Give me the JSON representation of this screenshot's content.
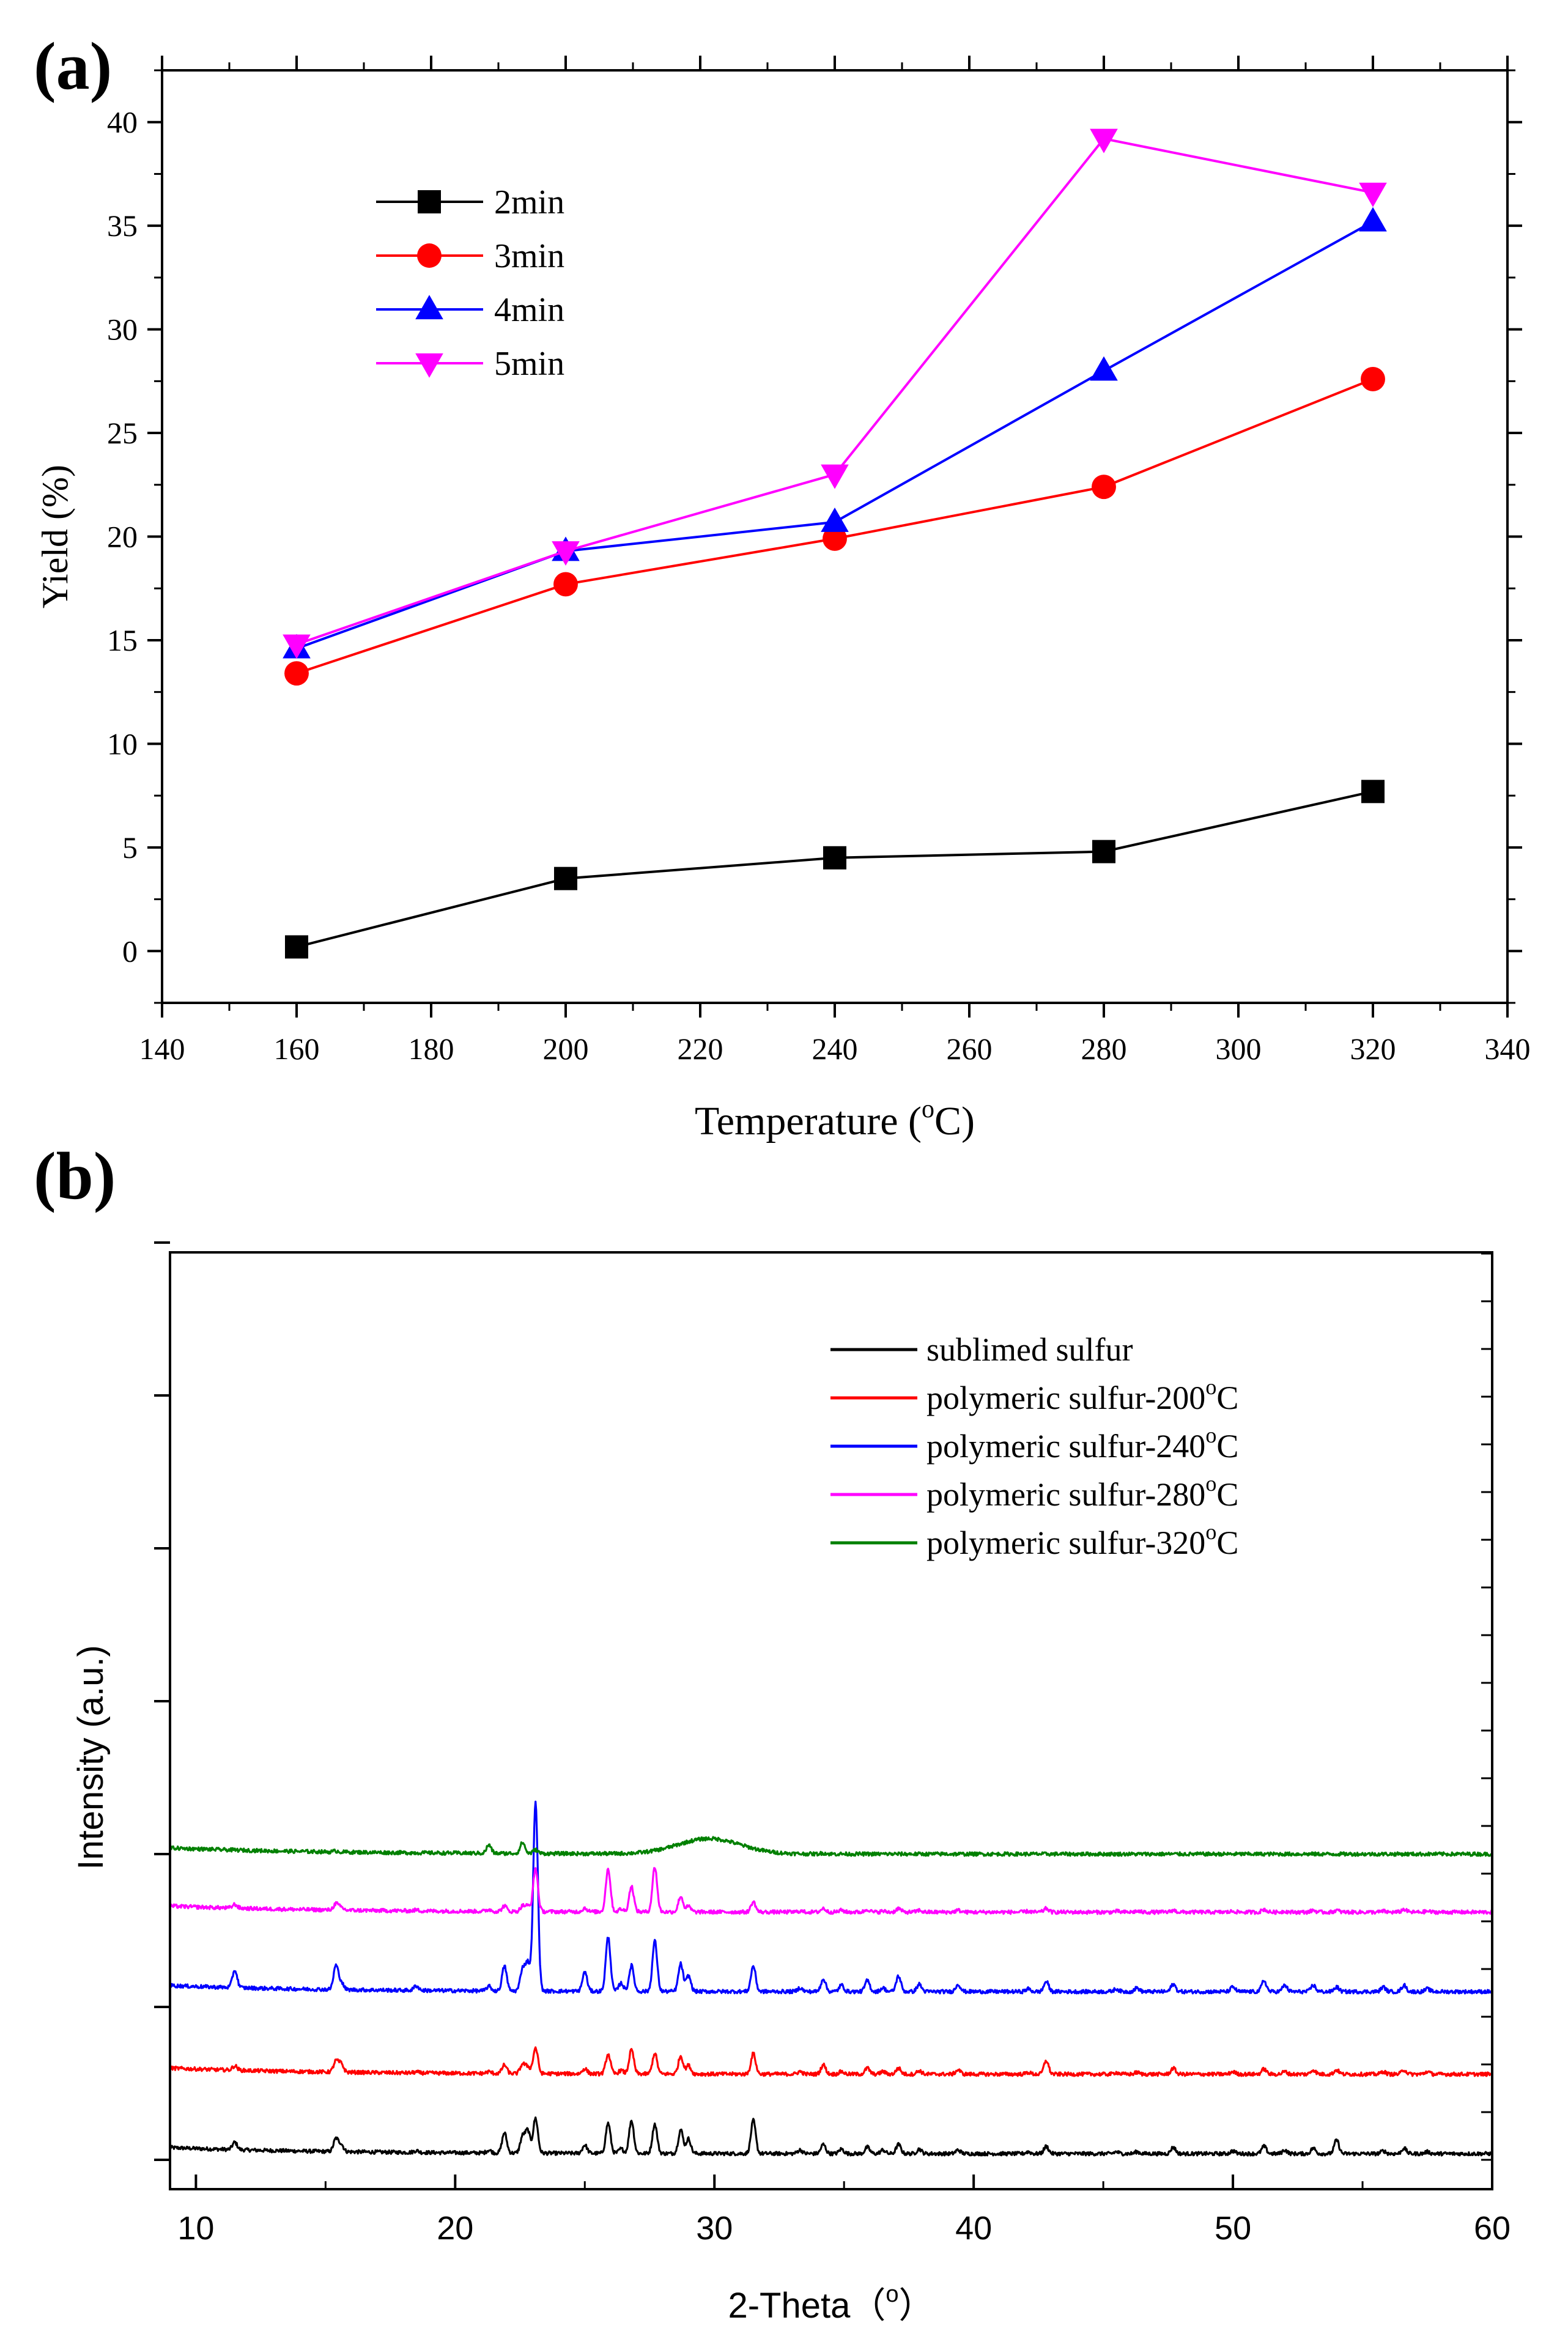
{
  "chart_data": [
    {
      "type": "line",
      "panel_label": "(a)",
      "xlabel": "Temperature (",
      "xlabel_sup": "o",
      "xlabel_end": "C)",
      "ylabel": "Yield (%)",
      "xlim": [
        140,
        340
      ],
      "ylim": [
        -2.5,
        42.5
      ],
      "xticks": [
        "140",
        "160",
        "180",
        "200",
        "220",
        "240",
        "260",
        "280",
        "300",
        "320",
        "340"
      ],
      "yticks": [
        "0",
        "5",
        "10",
        "15",
        "20",
        "25",
        "30",
        "35",
        "40"
      ],
      "legend_position": "top-left",
      "x": [
        160,
        200,
        240,
        280,
        320
      ],
      "series": [
        {
          "name": "2min",
          "color": "#000000",
          "marker": "square",
          "values": [
            0.2,
            3.5,
            4.5,
            4.8,
            7.7
          ]
        },
        {
          "name": "3min",
          "color": "#ff0000",
          "marker": "circle",
          "values": [
            13.4,
            17.7,
            19.9,
            22.4,
            27.6
          ]
        },
        {
          "name": "4min",
          "color": "#0000ff",
          "marker": "triangle-up",
          "values": [
            14.6,
            19.3,
            20.7,
            28.0,
            35.2
          ]
        },
        {
          "name": "5min",
          "color": "#ff00ff",
          "marker": "triangle-down",
          "values": [
            14.8,
            19.3,
            23.0,
            39.2,
            36.6
          ]
        }
      ]
    },
    {
      "type": "line",
      "panel_label": "(b)",
      "xlabel": "2-Theta（",
      "xlabel_sup": "o",
      "xlabel_end": "）",
      "ylabel": "Intensity (a.u.)",
      "xlim": [
        9,
        60
      ],
      "xticks": [
        "10",
        "20",
        "30",
        "40",
        "50",
        "60"
      ],
      "y_tick_labels": "none",
      "legend_position": "top-right",
      "peak_positions": [
        11.5,
        15.4,
        15.6,
        18.5,
        21.3,
        21.9,
        22.6,
        22.8,
        23.1,
        25.0,
        25.9,
        26.4,
        26.8,
        27.7,
        28.7,
        29.0,
        31.5,
        33.3,
        34.2,
        34.9,
        35.9,
        36.5,
        37.1,
        37.9,
        39.4,
        42.1,
        42.8,
        45.5,
        46.3,
        47.7,
        50.0,
        51.2,
        52.0,
        53.1,
        54.0,
        55.8,
        56.6,
        57.5
      ],
      "series": [
        {
          "name": "sublimed sulfur",
          "name_sup": "",
          "color": "#000000",
          "baseline": 0.02,
          "peak_scale": 0.3,
          "peak_heights": [
            0.08,
            0.14,
            0.08,
            0.02,
            0.03,
            0.22,
            0.18,
            0.24,
            0.38,
            0.09,
            0.33,
            0.05,
            0.36,
            0.32,
            0.26,
            0.16,
            0.36,
            0.04,
            0.1,
            0.05,
            0.07,
            0.04,
            0.1,
            0.05,
            0.04,
            0.02,
            0.08,
            0.02,
            0.02,
            0.07,
            0.03,
            0.08,
            0.04,
            0.06,
            0.15,
            0.03,
            0.06,
            0.02
          ]
        },
        {
          "name": "polymeric sulfur-200",
          "name_sup": "o",
          "name_end": "C",
          "color": "#ff0000",
          "baseline": 0.28,
          "peak_scale": 0.28,
          "peak_heights": [
            0.05,
            0.13,
            0.1,
            0.01,
            0.02,
            0.1,
            0.11,
            0.08,
            0.3,
            0.06,
            0.23,
            0.04,
            0.28,
            0.24,
            0.21,
            0.1,
            0.24,
            0.03,
            0.11,
            0.03,
            0.07,
            0.03,
            0.07,
            0.04,
            0.05,
            0.02,
            0.16,
            0.02,
            0.02,
            0.07,
            0.03,
            0.06,
            0.03,
            0.05,
            0.05,
            0.03,
            0.05,
            0.03
          ]
        },
        {
          "name": "polymeric sulfur-240",
          "name_sup": "o",
          "name_end": "C",
          "color": "#0000ff",
          "baseline": 0.55,
          "peak_scale": 0.3,
          "peak_heights": [
            0.19,
            0.26,
            0.08,
            0.05,
            0.05,
            0.27,
            0.24,
            0.3,
            2.05,
            0.21,
            0.59,
            0.09,
            0.28,
            0.55,
            0.3,
            0.17,
            0.28,
            0.04,
            0.14,
            0.07,
            0.12,
            0.04,
            0.17,
            0.08,
            0.08,
            0.03,
            0.11,
            0.03,
            0.04,
            0.08,
            0.05,
            0.12,
            0.07,
            0.07,
            0.05,
            0.05,
            0.07,
            0.03
          ]
        },
        {
          "name": "polymeric sulfur-280",
          "name_sup": "o",
          "name_end": "C",
          "color": "#ff00ff",
          "baseline": 0.81,
          "peak_scale": 0.3,
          "peak_heights": [
            0.04,
            0.07,
            0.03,
            0.01,
            0.02,
            0.06,
            0.06,
            0.06,
            0.47,
            0.04,
            0.47,
            0.03,
            0.28,
            0.49,
            0.17,
            0.06,
            0.11,
            0.01,
            0.04,
            0.02,
            0.03,
            0.01,
            0.04,
            0.02,
            0.02,
            0.01,
            0.04,
            0.01,
            0.01,
            0.02,
            0.01,
            0.03,
            0.01,
            0.02,
            0.02,
            0.01,
            0.03,
            0.01
          ]
        },
        {
          "name": "polymeric sulfur-320",
          "name_sup": "o",
          "name_end": "C",
          "color": "#008000",
          "baseline": 1.0,
          "peak_scale": 0.3,
          "peak_heights": [
            0.0,
            0.01,
            0.0,
            0.0,
            0.09,
            0.0,
            0.12,
            0.0,
            0.04,
            0.0,
            0.0,
            0.0,
            0.0,
            0.0,
            0.0,
            0.0,
            0.0,
            0.0,
            0.01,
            0.0,
            0.0,
            0.0,
            0.0,
            0.0,
            0.0,
            0.0,
            0.0,
            0.0,
            0.0,
            0.0,
            0.0,
            0.0,
            0.0,
            0.0,
            0.0,
            0.0,
            0.0,
            0.0
          ],
          "broad_hump": {
            "center": 29.8,
            "height": 0.05,
            "width": 1.2
          }
        }
      ]
    }
  ]
}
